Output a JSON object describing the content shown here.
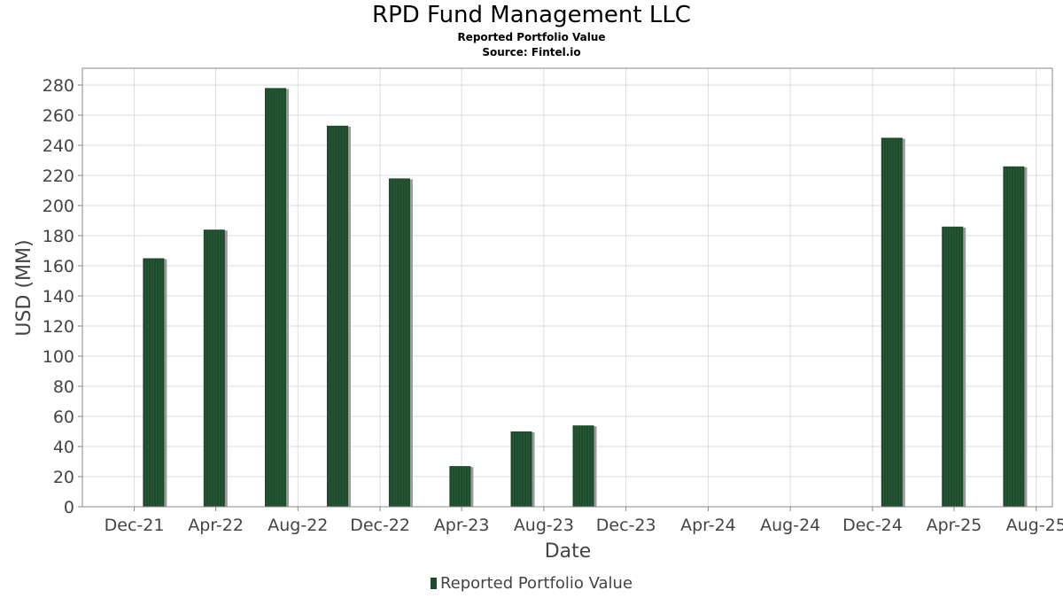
{
  "chart_data": {
    "type": "bar",
    "title": "RPD Fund Management LLC",
    "subtitles": [
      "Reported Portfolio Value",
      "Source: Fintel.io"
    ],
    "xlabel": "Date",
    "ylabel": "USD (MM)",
    "ylim": [
      0,
      290
    ],
    "yticks": [
      0,
      20,
      40,
      60,
      80,
      100,
      120,
      140,
      160,
      180,
      200,
      220,
      240,
      260,
      280
    ],
    "xlim": [
      "2021-09-15",
      "2025-08-25"
    ],
    "xticks": [
      {
        "date": "2021-12-01",
        "label": "Dec-21"
      },
      {
        "date": "2022-04-01",
        "label": "Apr-22"
      },
      {
        "date": "2022-08-01",
        "label": "Aug-22"
      },
      {
        "date": "2022-12-01",
        "label": "Dec-22"
      },
      {
        "date": "2023-04-01",
        "label": "Apr-23"
      },
      {
        "date": "2023-08-01",
        "label": "Aug-23"
      },
      {
        "date": "2023-12-01",
        "label": "Dec-23"
      },
      {
        "date": "2024-04-01",
        "label": "Apr-24"
      },
      {
        "date": "2024-08-01",
        "label": "Aug-24"
      },
      {
        "date": "2024-12-01",
        "label": "Dec-24"
      },
      {
        "date": "2025-04-01",
        "label": "Apr-25"
      },
      {
        "date": "2025-08-01",
        "label": "Aug-25"
      }
    ],
    "grid": true,
    "legend_position": "bottom",
    "series": [
      {
        "name": "Reported Portfolio Value",
        "color": "#1f4a2c",
        "points": [
          {
            "date": "2021-12-31",
            "value": 165
          },
          {
            "date": "2022-03-31",
            "value": 184
          },
          {
            "date": "2022-06-30",
            "value": 278
          },
          {
            "date": "2022-09-30",
            "value": 253
          },
          {
            "date": "2022-12-31",
            "value": 218
          },
          {
            "date": "2023-03-31",
            "value": 27
          },
          {
            "date": "2023-06-30",
            "value": 50
          },
          {
            "date": "2023-09-30",
            "value": 54
          },
          {
            "date": "2024-12-31",
            "value": 245
          },
          {
            "date": "2025-03-31",
            "value": 186
          },
          {
            "date": "2025-06-30",
            "value": 226
          }
        ]
      }
    ]
  }
}
